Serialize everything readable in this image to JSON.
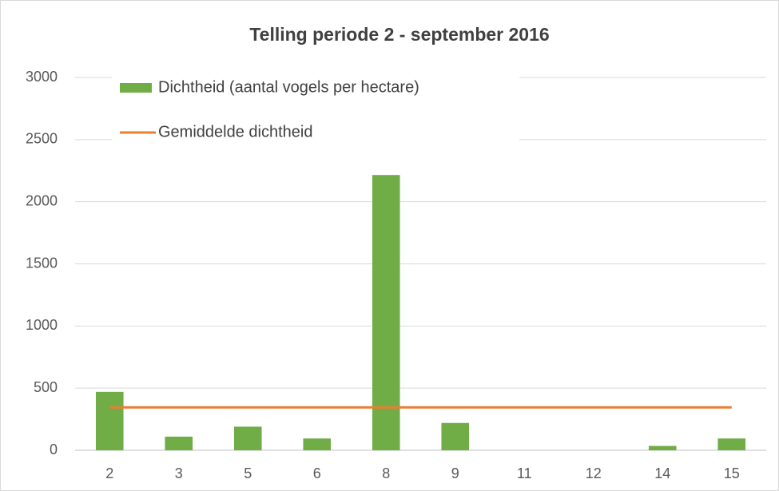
{
  "chart_data": {
    "type": "bar",
    "title": "Telling periode 2 - september 2016",
    "categories": [
      "2",
      "3",
      "5",
      "6",
      "8",
      "9",
      "11",
      "12",
      "14",
      "15"
    ],
    "series": [
      {
        "name": "Dichtheid (aantal vogels per hectare)",
        "type": "bar",
        "color": "#70ad47",
        "values": [
          470,
          110,
          190,
          95,
          2215,
          220,
          0,
          0,
          35,
          95
        ]
      },
      {
        "name": "Gemiddelde dichtheid",
        "type": "line",
        "color": "#ed7d31",
        "values": [
          345,
          345,
          345,
          345,
          345,
          345,
          345,
          345,
          345,
          345
        ]
      }
    ],
    "ylim": [
      0,
      3000
    ],
    "yticks": [
      0,
      500,
      1000,
      1500,
      2000,
      2500,
      3000
    ],
    "grid": true,
    "legend": "top-left"
  }
}
